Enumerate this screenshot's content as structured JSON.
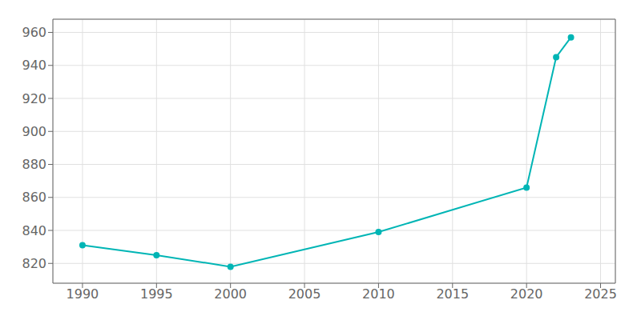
{
  "chart_data": {
    "type": "line",
    "x": [
      1990,
      1995,
      2000,
      2010,
      2020,
      2022,
      2023
    ],
    "values": [
      831,
      825,
      818,
      839,
      866,
      945,
      957
    ],
    "color": "#00b5b5",
    "marker": "o",
    "xlim": [
      1988,
      2026
    ],
    "ylim": [
      808,
      968
    ],
    "xticks": [
      1990,
      1995,
      2000,
      2005,
      2010,
      2015,
      2020,
      2025
    ],
    "yticks": [
      820,
      840,
      860,
      880,
      900,
      920,
      940,
      960
    ],
    "grid": true
  }
}
